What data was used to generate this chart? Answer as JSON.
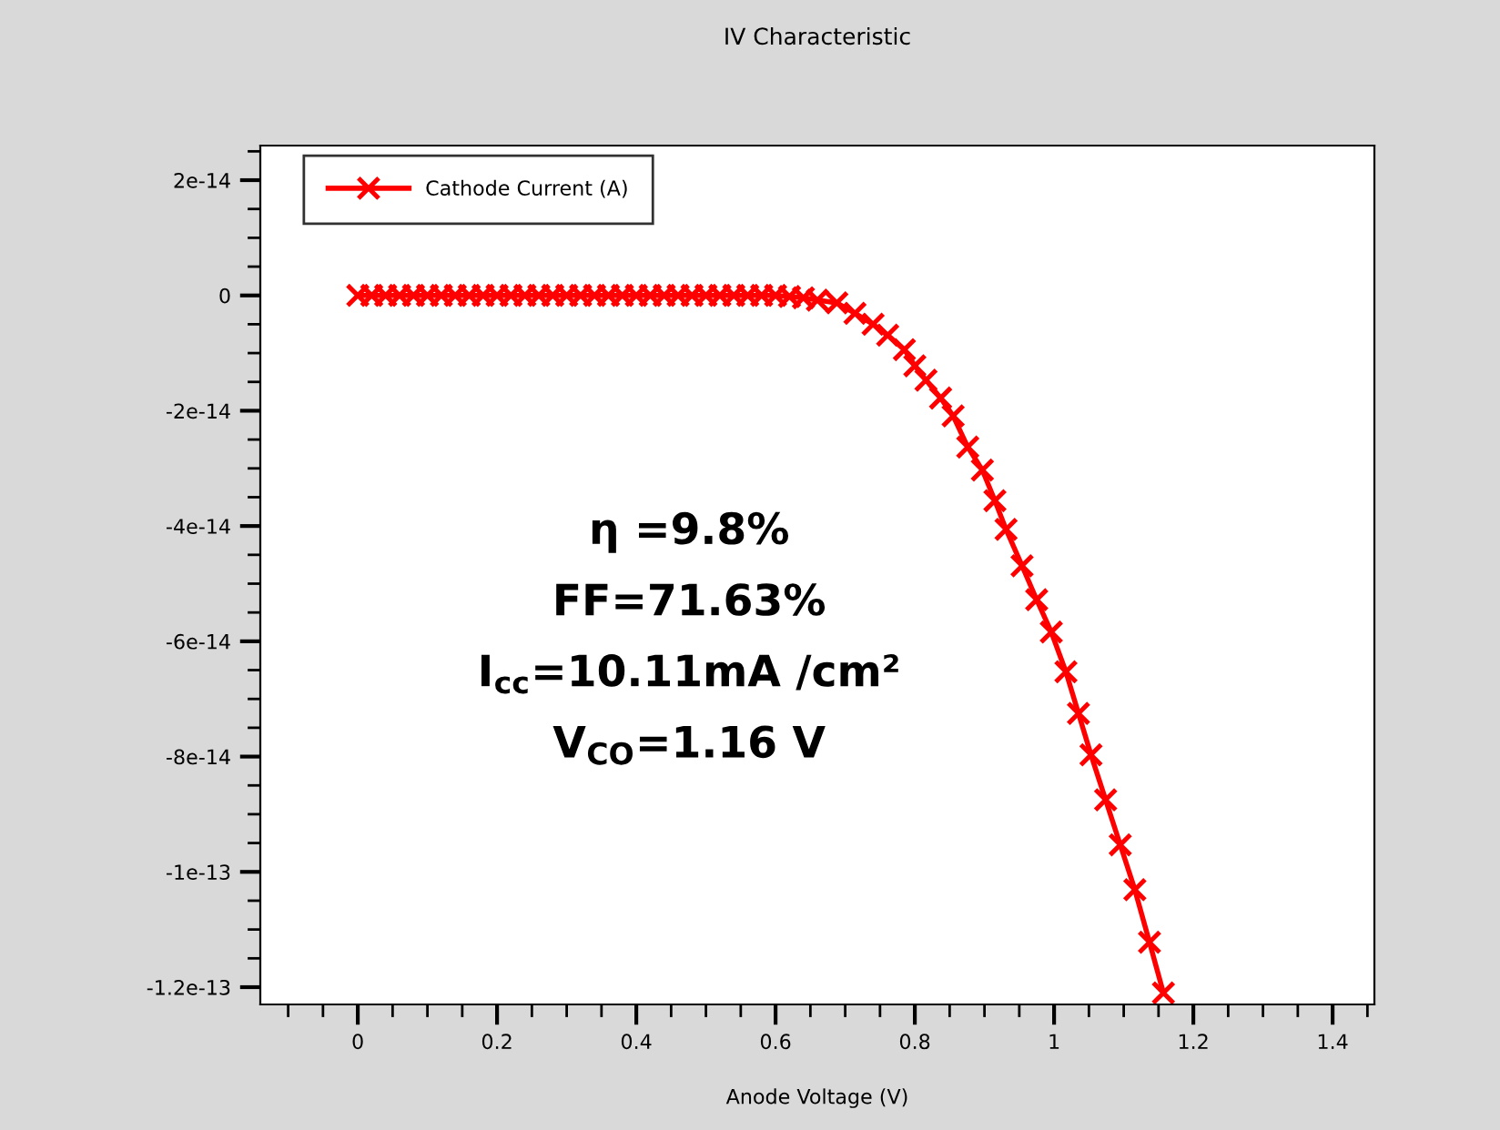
{
  "chart_data": {
    "type": "line",
    "title": "IV Characteristic",
    "xlabel": "Anode Voltage (V)",
    "x": [
      0,
      0.02,
      0.04,
      0.06,
      0.08,
      0.1,
      0.12,
      0.14,
      0.16,
      0.18,
      0.2,
      0.22,
      0.24,
      0.26,
      0.28,
      0.3,
      0.32,
      0.34,
      0.36,
      0.38,
      0.4,
      0.42,
      0.44,
      0.46,
      0.48,
      0.5,
      0.52,
      0.54,
      0.56,
      0.58,
      0.6,
      0.62,
      0.64,
      0.66,
      0.688,
      0.714,
      0.74,
      0.761,
      0.785,
      0.8,
      0.816,
      0.837,
      0.855,
      0.876,
      0.897,
      0.915,
      0.931,
      0.954,
      0.975,
      0.996,
      1.017,
      1.035,
      1.053,
      1.074,
      1.095,
      1.116,
      1.137,
      1.157
    ],
    "series": [
      {
        "name": "Cathode Current (A)",
        "color": "#ff0000",
        "values": [
          0,
          0,
          0,
          0,
          0,
          0,
          0,
          0,
          0,
          0,
          0,
          0,
          0,
          0,
          0,
          0,
          0,
          0,
          0,
          0,
          0,
          0,
          0,
          0,
          0,
          0,
          0,
          0,
          0,
          0,
          0,
          -2e-16,
          -4e-16,
          -8e-16,
          -1.3e-15,
          -3.1e-15,
          -5e-15,
          -6.9e-15,
          -9.4e-15,
          -1.22e-14,
          -1.47e-14,
          -1.78e-14,
          -2.09e-14,
          -2.63e-14,
          -3.03e-14,
          -3.56e-14,
          -4.06e-14,
          -4.69e-14,
          -5.28e-14,
          -5.84e-14,
          -6.53e-14,
          -7.25e-14,
          -7.97e-14,
          -8.75e-14,
          -9.53e-14,
          -1.031e-13,
          -1.122e-13,
          -1.21e-13
        ]
      }
    ],
    "xlim": [
      -0.14,
      1.46
    ],
    "xticks": [
      0,
      0.2,
      0.4,
      0.6,
      0.8,
      1,
      1.2,
      1.4
    ],
    "ylim": [
      -1.23e-13,
      2.6e-14
    ],
    "yticks": [
      {
        "value": 2e-14,
        "label": "2e-14"
      },
      0,
      {
        "value": -2e-14,
        "label": "-2e-14"
      },
      {
        "value": -4e-14,
        "label": "-4e-14"
      },
      {
        "value": -6e-14,
        "label": "-6e-14"
      },
      {
        "value": -8e-14,
        "label": "-8e-14"
      },
      {
        "value": -1e-13,
        "label": "-1e-13"
      },
      {
        "value": -1.2e-13,
        "label": "-1.2e-13"
      }
    ],
    "annotations": [
      "η =9.8%",
      "FF=71.63%",
      "I$_{cc}$=10.11mA /cm²",
      "V$_{CO}$=1.16 V"
    ],
    "legend": "top left",
    "marker": "cross",
    "line_style": "solid",
    "grid": false
  }
}
